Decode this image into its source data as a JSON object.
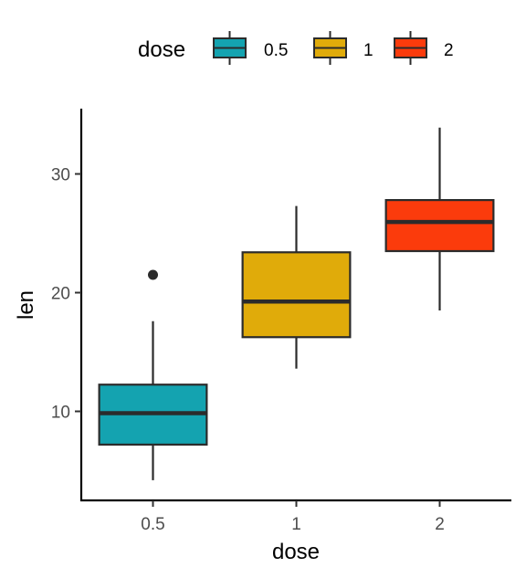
{
  "chart_data": {
    "type": "box",
    "xlabel": "dose",
    "ylabel": "len",
    "ylim": [
      2.5,
      35.5
    ],
    "y_ticks": [
      10,
      20,
      30
    ],
    "legend": {
      "title": "dose",
      "position": "top"
    },
    "categories": [
      "0.5",
      "1",
      "2"
    ],
    "series": [
      {
        "name": "0.5",
        "color": "#14a3b0",
        "lower_whisker": 4.2,
        "q1": 7.2,
        "median": 9.85,
        "q3": 12.25,
        "upper_whisker": 17.6,
        "outliers": [
          21.5
        ]
      },
      {
        "name": "1",
        "color": "#e0ab0a",
        "lower_whisker": 13.6,
        "q1": 16.25,
        "median": 19.25,
        "q3": 23.4,
        "upper_whisker": 27.3,
        "outliers": []
      },
      {
        "name": "2",
        "color": "#fb3b0c",
        "lower_whisker": 18.5,
        "q1": 23.5,
        "median": 25.95,
        "q3": 27.8,
        "upper_whisker": 33.9,
        "outliers": []
      }
    ]
  }
}
